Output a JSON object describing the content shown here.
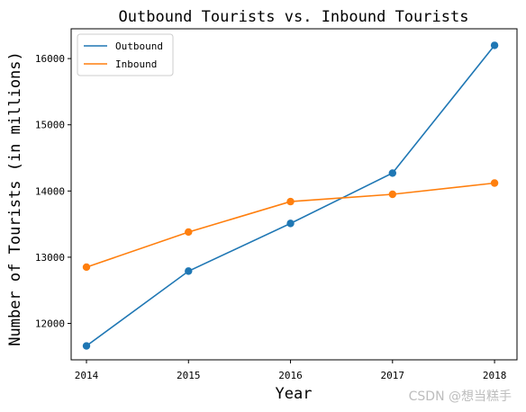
{
  "chart_data": {
    "type": "line",
    "title": "Outbound Tourists vs. Inbound Tourists",
    "xlabel": "Year",
    "ylabel": "Number of Tourists (in millions)",
    "x": [
      2014,
      2015,
      2016,
      2017,
      2018
    ],
    "xticks": [
      "2014",
      "2015",
      "2016",
      "2017",
      "2018"
    ],
    "ylim": [
      11450,
      16450
    ],
    "yticks": [
      12000,
      13000,
      14000,
      15000,
      16000
    ],
    "ytick_labels": [
      "12000",
      "13000",
      "14000",
      "15000",
      "16000"
    ],
    "grid": false,
    "legend": "top-left",
    "markers": true,
    "series": [
      {
        "name": "Outbound",
        "color": "#1f77b4",
        "values": [
          11660,
          12790,
          13510,
          14270,
          16200
        ]
      },
      {
        "name": "Inbound",
        "color": "#ff7f0e",
        "values": [
          12850,
          13380,
          13840,
          13950,
          14120
        ]
      }
    ]
  },
  "watermark": "CSDN @想当糕手"
}
